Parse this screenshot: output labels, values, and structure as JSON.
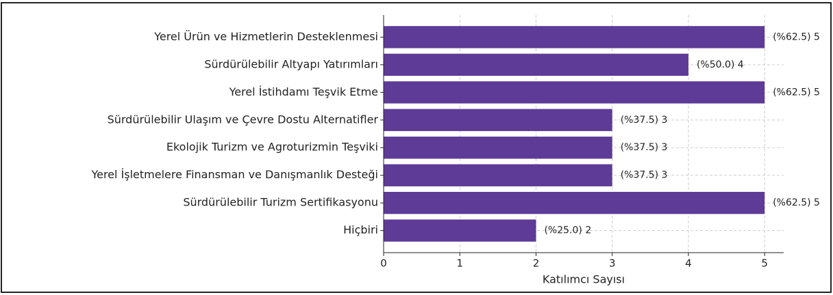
{
  "chart_data": {
    "type": "bar",
    "orientation": "horizontal",
    "xlabel": "Katılımcı Sayısı",
    "categories": [
      "Yerel Ürün ve Hizmetlerin Desteklenmesi",
      "Sürdürülebilir Altyapı Yatırımları",
      "Yerel İstihdamı Teşvik Etme",
      "Sürdürülebilir Ulaşım ve Çevre Dostu Alternatifler",
      "Ekolojik Turizm ve Agroturizmin Teşviki",
      "Yerel İşletmelere Finansman ve Danışmanlık Desteği",
      "Sürdürülebilir Turizm Sertifikasyonu",
      "Hiçbiri"
    ],
    "values": [
      5,
      4,
      5,
      3,
      3,
      3,
      5,
      2
    ],
    "value_labels": [
      "(%62.5) 5",
      "(%50.0) 4",
      "(%62.5) 5",
      "(%37.5) 3",
      "(%37.5) 3",
      "(%37.5) 3",
      "(%62.5) 5",
      "(%25.0) 2"
    ],
    "color": "#5e3b97",
    "xlim": [
      0,
      5.25
    ],
    "xticks": [
      0,
      1,
      2,
      3,
      4,
      5
    ],
    "grid": true
  }
}
